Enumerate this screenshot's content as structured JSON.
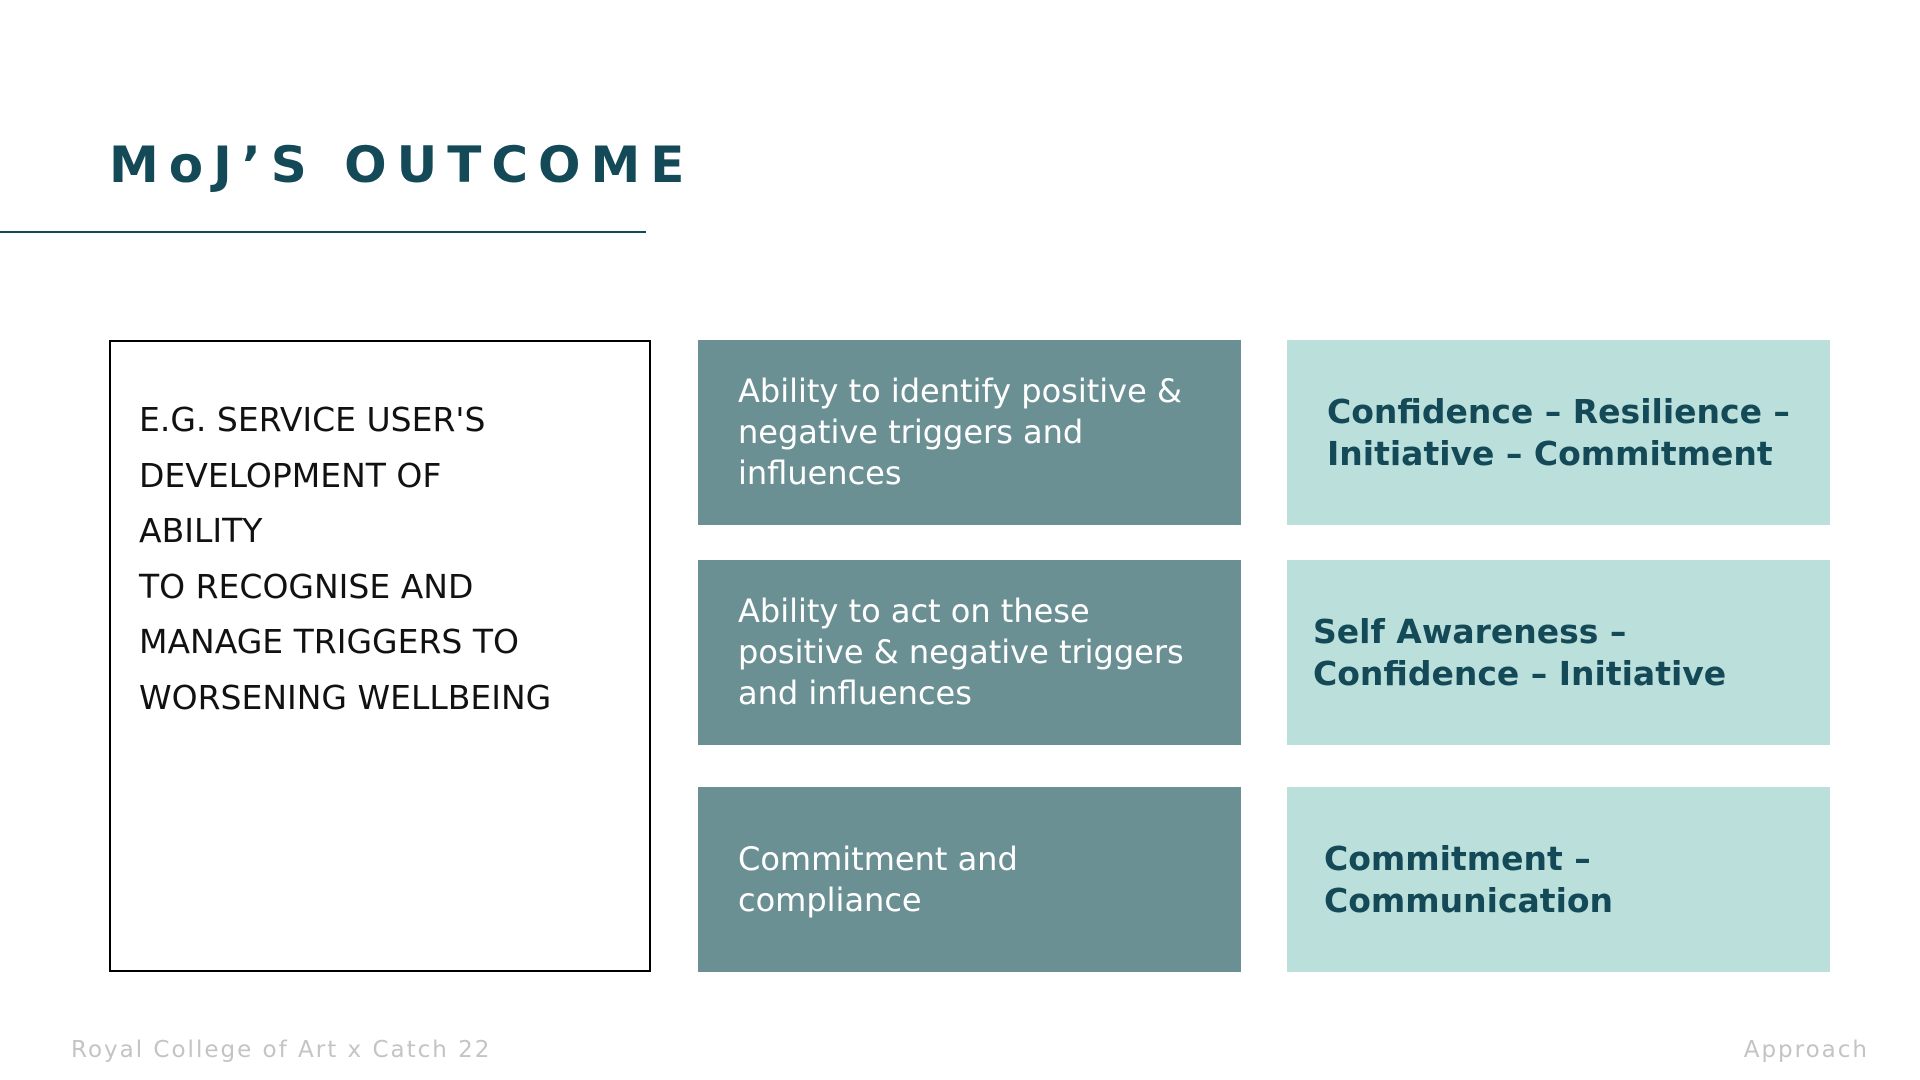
{
  "slide": {
    "title": "MoJ’S OUTCOME",
    "outcome": {
      "lines": [
        "E.G. SERVICE USER'S",
        "DEVELOPMENT OF",
        "ABILITY",
        "TO RECOGNISE AND",
        "MANAGE TRIGGERS TO",
        "WORSENING WELLBEING"
      ]
    },
    "rows": [
      {
        "ability_lines": [
          "Ability to identify positive &",
          "negative triggers and",
          "influences"
        ],
        "skills_lines": [
          "Confidence –  Resilience –",
          "Initiative – Commitment"
        ]
      },
      {
        "ability_lines": [
          "Ability to act on these",
          "positive & negative triggers",
          "and influences"
        ],
        "skills_lines": [
          "Self Awareness –",
          "Confidence – Initiative"
        ]
      },
      {
        "ability_lines": [
          "Commitment and",
          "compliance"
        ],
        "skills_lines": [
          "Commitment  –",
          "Communication"
        ]
      }
    ]
  },
  "footer": {
    "left": "Royal College of Art x Catch 22",
    "right": "Approach"
  },
  "colors": {
    "title": "#144a57",
    "dark_card": "#6a9094",
    "light_card": "#bbdfdb",
    "footer_text": "#c4c4c4"
  }
}
